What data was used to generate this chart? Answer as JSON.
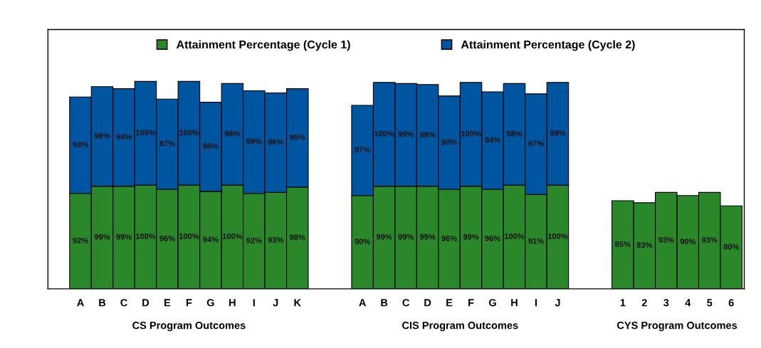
{
  "chart_data": {
    "type": "bar",
    "stacked": true,
    "categories": [
      "A",
      "B",
      "C",
      "D",
      "E",
      "F",
      "G",
      "H",
      "I",
      "J",
      "K",
      null,
      null,
      "A",
      "B",
      "C",
      "D",
      "E",
      "F",
      "G",
      "H",
      "I",
      "J",
      null,
      null,
      "1",
      "2",
      "3",
      "4",
      "5",
      "6"
    ],
    "series": [
      {
        "name": "Attainment Percentage (Cycle 1)",
        "color": "#2a882a",
        "values": [
          92,
          99,
          99,
          100,
          96,
          100,
          94,
          100,
          92,
          93,
          98,
          null,
          null,
          90,
          99,
          99,
          99,
          96,
          99,
          96,
          100,
          91,
          100,
          null,
          null,
          85,
          83,
          93,
          90,
          93,
          80
        ],
        "value_labels": [
          "92%",
          "99%",
          "99%",
          "100%",
          "96%",
          "100%",
          "94%",
          "100%",
          "92%",
          "93%",
          "98%",
          null,
          null,
          "90%",
          "99%",
          "99%",
          "99%",
          "96%",
          "99%",
          "96%",
          "100%",
          "91%",
          "100%",
          null,
          null,
          "85%",
          "83%",
          "93%",
          "90%",
          "93%",
          "80%"
        ]
      },
      {
        "name": "Attainment Percentage (Cycle 2)",
        "color": "#0055a0",
        "values": [
          93,
          96,
          94,
          100,
          87,
          100,
          86,
          98,
          99,
          96,
          95,
          null,
          null,
          87,
          100,
          99,
          98,
          90,
          100,
          94,
          98,
          97,
          99,
          null,
          null,
          null,
          null,
          null,
          null,
          null,
          null
        ],
        "value_labels": [
          "93%",
          "96%",
          "94%",
          "100%",
          "87%",
          "100%",
          "86%",
          "98%",
          "99%",
          "96%",
          "95%",
          null,
          null,
          "87%",
          "100%",
          "99%",
          "98%",
          "90%",
          "100%",
          "94%",
          "98%",
          "97%",
          "99%",
          null,
          null,
          null,
          null,
          null,
          null,
          null,
          null
        ]
      }
    ],
    "annotations": [
      "CS Program Outcomes",
      "CIS Program Outcomes",
      "CYS Program Outcomes"
    ],
    "legend": "top",
    "grid": false,
    "tick_labels": "x"
  }
}
